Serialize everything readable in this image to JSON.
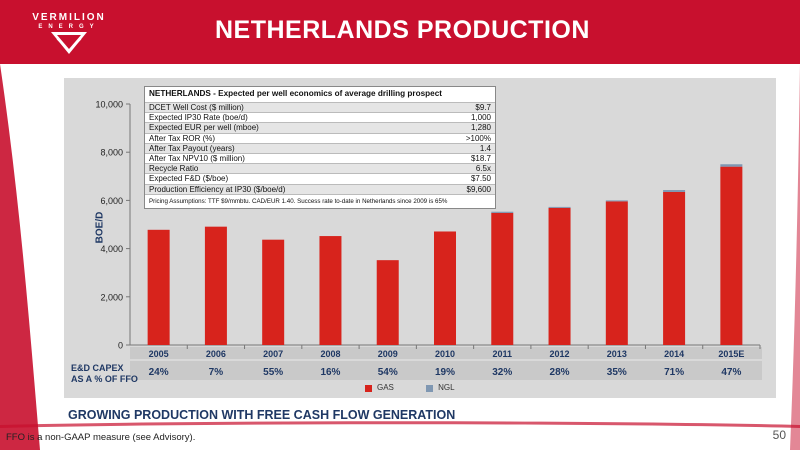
{
  "brand": {
    "name": "VERMILION",
    "sub": "ENERGY"
  },
  "title": "NETHERLANDS PRODUCTION",
  "tagline": "GROWING PRODUCTION WITH FREE CASH FLOW GENERATION",
  "footnote": "FFO is a non-GAAP measure (see Advisory).",
  "page_number": "50",
  "colors": {
    "brand_red": "#c8102e",
    "gas": "#d7231c",
    "ngl": "#7f97b2",
    "navy": "#1f3864"
  },
  "economics": {
    "title": "NETHERLANDS - Expected per well economics of average drilling prospect",
    "rows": [
      {
        "label": "DCET Well Cost ($ million)",
        "value": "$9.7"
      },
      {
        "label": "Expected IP30 Rate (boe/d)",
        "value": "1,000"
      },
      {
        "label": "Expected EUR per well (mboe)",
        "value": "1,280"
      },
      {
        "label": "After Tax ROR (%)",
        "value": ">100%"
      },
      {
        "label": "After Tax Payout (years)",
        "value": "1.4"
      },
      {
        "label": "After Tax NPV10 ($ million)",
        "value": "$18.7"
      },
      {
        "label": "Recycle Ratio",
        "value": "6.5x"
      },
      {
        "label": "Expected F&D ($/boe)",
        "value": "$7.50"
      },
      {
        "label": "Production Efficiency at IP30 ($/boe/d)",
        "value": "$9,600"
      }
    ],
    "note": "Pricing Assumptions:  TTF $9/mmbtu.  CAD/EUR 1.40.  Success rate to-date in Netherlands since 2009 is 65%"
  },
  "capex": {
    "label_line1": "E&D CAPEX",
    "label_line2": "AS A % OF FFO",
    "values": [
      "24%",
      "7%",
      "55%",
      "16%",
      "54%",
      "19%",
      "32%",
      "28%",
      "35%",
      "71%",
      "47%"
    ]
  },
  "chart_data": {
    "type": "bar",
    "stacked": true,
    "categories": [
      "2005",
      "2006",
      "2007",
      "2008",
      "2009",
      "2010",
      "2011",
      "2012",
      "2013",
      "2014",
      "2015E"
    ],
    "series": [
      {
        "name": "GAS",
        "color": "#d7231c",
        "values": [
          4780,
          4910,
          4370,
          4520,
          3520,
          4710,
          5480,
          5690,
          5960,
          6350,
          7400
        ]
      },
      {
        "name": "NGL",
        "color": "#7f97b2",
        "values": [
          0,
          0,
          0,
          0,
          0,
          0,
          50,
          40,
          40,
          80,
          100
        ]
      }
    ],
    "ylabel": "BOE/D",
    "ylim": [
      0,
      10000
    ],
    "yticks": [
      "0",
      "2,000",
      "4,000",
      "6,000",
      "8,000",
      "10,000"
    ],
    "ytick_values": [
      0,
      2000,
      4000,
      6000,
      8000,
      10000
    ],
    "legend": "bottom-center",
    "grid": false
  }
}
